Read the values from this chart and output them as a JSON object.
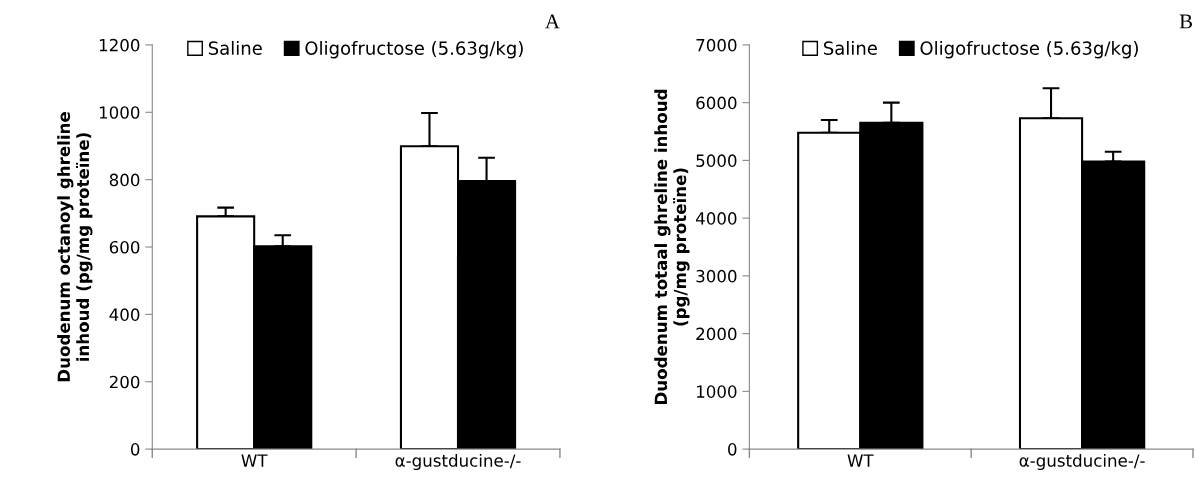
{
  "chart_data": [
    {
      "type": "bar",
      "title": "A",
      "ylabel": "Duodenum octanoyl ghreline\ninhoud (pg/mg proteïne)",
      "categories": [
        "WT",
        "α-gustducine-/-"
      ],
      "ylim": [
        0,
        1200
      ],
      "yticks": [
        0,
        200,
        400,
        600,
        800,
        1000,
        1200
      ],
      "grid": false,
      "legend": "top",
      "series": [
        {
          "name": "Saline",
          "color": "#ffffff",
          "values": [
            691,
            899
          ],
          "errors": [
            [
              691,
              717
            ],
            [
              899,
              998
            ]
          ]
        },
        {
          "name": "Oligofructose (5.63g/kg)",
          "color": "#000000",
          "values": [
            602,
            796
          ],
          "errors": [
            [
              602,
              635
            ],
            [
              796,
              865
            ]
          ]
        }
      ]
    },
    {
      "type": "bar",
      "title": "B",
      "ylabel": "Duodenum totaal ghreline inhoud\n(pg/mg proteïne)",
      "categories": [
        "WT",
        "α-gustducine-/-"
      ],
      "ylim": [
        0,
        7000
      ],
      "yticks": [
        0,
        1000,
        2000,
        3000,
        4000,
        5000,
        6000,
        7000
      ],
      "grid": false,
      "legend": "top",
      "series": [
        {
          "name": "Saline",
          "color": "#ffffff",
          "values": [
            5480,
            5730
          ],
          "errors": [
            [
              5480,
              5700
            ],
            [
              5730,
              6250
            ]
          ]
        },
        {
          "name": "Oligofructose (5.63g/kg)",
          "color": "#000000",
          "values": [
            5650,
            4980
          ],
          "errors": [
            [
              5650,
              6000
            ],
            [
              4980,
              5150
            ]
          ]
        }
      ]
    }
  ]
}
